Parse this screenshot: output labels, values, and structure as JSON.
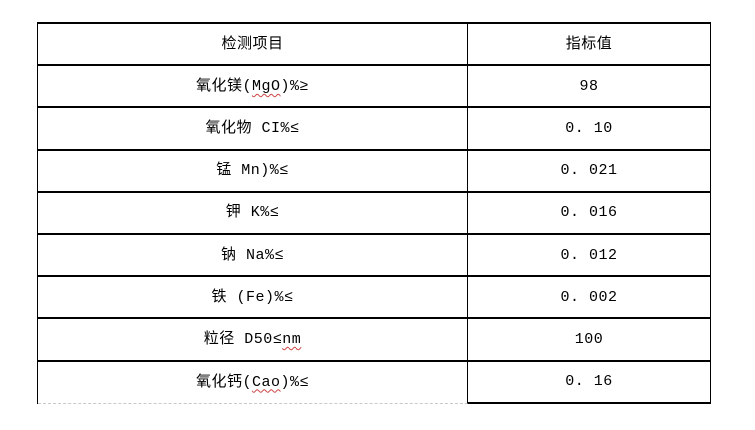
{
  "table": {
    "columns": [
      {
        "label": "检测项目"
      },
      {
        "label": "指标值"
      }
    ],
    "rows": [
      {
        "item_prefix": "氧化镁(",
        "item_wavy": "MgO",
        "item_suffix": ")%≥",
        "value": "98"
      },
      {
        "item_prefix": "氧化物 CI%≤",
        "item_wavy": "",
        "item_suffix": "",
        "value": "0. 10"
      },
      {
        "item_prefix": "锰 Mn)%≤",
        "item_wavy": "",
        "item_suffix": "",
        "value": "0. 021"
      },
      {
        "item_prefix": "钾 K%≤",
        "item_wavy": "",
        "item_suffix": "",
        "value": "0. 016"
      },
      {
        "item_prefix": "钠 Na%≤",
        "item_wavy": "",
        "item_suffix": "",
        "value": "0. 012"
      },
      {
        "item_prefix": "铁 (Fe)%≤",
        "item_wavy": "",
        "item_suffix": "",
        "value": "0. 002"
      },
      {
        "item_prefix": "粒径 D50≤",
        "item_wavy": "nm",
        "item_suffix": "",
        "value": "100"
      },
      {
        "item_prefix": "氧化钙(",
        "item_wavy": "Cao",
        "item_suffix": ")%≤",
        "value": "0. 16"
      }
    ],
    "colors": {
      "border": "#000000",
      "text": "#000000",
      "spellcheck_underline": "#cc4444",
      "hidden_border_dashed": "#c9c9c9",
      "background": "#ffffff"
    }
  }
}
